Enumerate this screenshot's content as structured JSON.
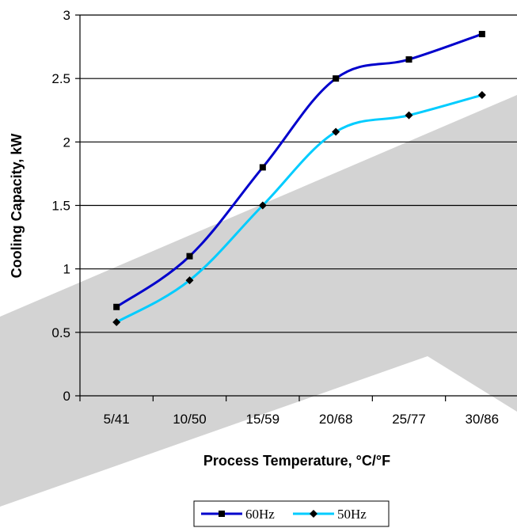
{
  "chart_data": {
    "type": "line",
    "categories": [
      "5/41",
      "10/50",
      "15/59",
      "20/68",
      "25/77",
      "30/86"
    ],
    "series": [
      {
        "name": "60Hz",
        "values": [
          0.7,
          1.1,
          1.8,
          2.5,
          2.65,
          2.85
        ],
        "color": "#0000cc",
        "marker": "square"
      },
      {
        "name": "50Hz",
        "values": [
          0.58,
          0.91,
          1.5,
          2.08,
          2.21,
          2.37
        ],
        "color": "#00ccff",
        "marker": "diamond"
      }
    ],
    "xlabel": "Process Temperature, °C/°F",
    "ylabel": "Cooling Capacity, kW",
    "ylim": [
      0,
      3
    ],
    "yticks": [
      "0",
      "0.5",
      "1",
      "1.5",
      "2",
      "2.5",
      "3"
    ],
    "grid": true,
    "legend": "bottom"
  }
}
